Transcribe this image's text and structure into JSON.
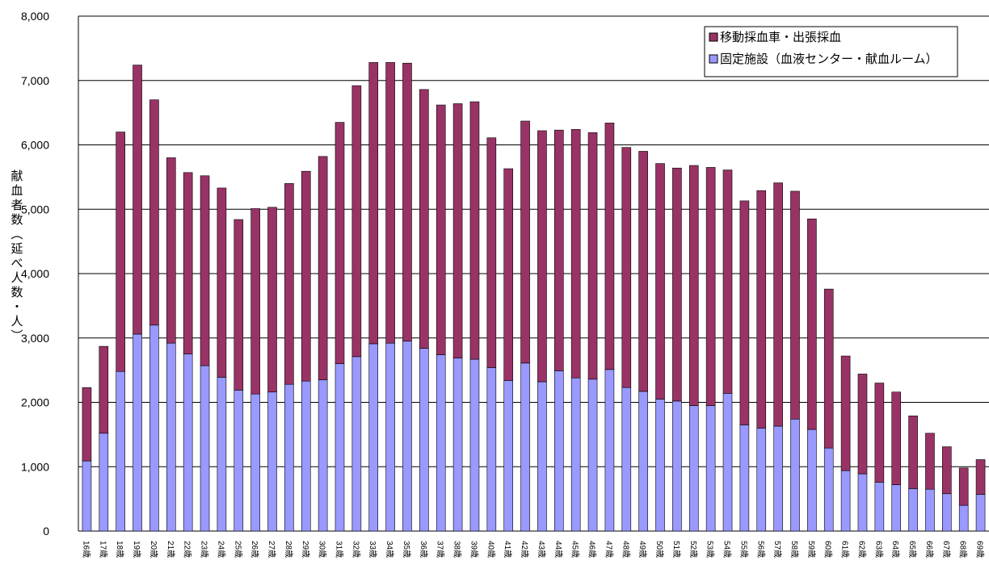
{
  "chart_data": {
    "type": "stacked_bar",
    "y_label": "献血者数（延べ人数・人）",
    "categories": [
      "16歳",
      "17歳",
      "18歳",
      "19歳",
      "20歳",
      "21歳",
      "22歳",
      "23歳",
      "24歳",
      "25歳",
      "26歳",
      "27歳",
      "28歳",
      "29歳",
      "30歳",
      "31歳",
      "32歳",
      "33歳",
      "34歳",
      "35歳",
      "36歳",
      "37歳",
      "38歳",
      "39歳",
      "40歳",
      "41歳",
      "42歳",
      "43歳",
      "44歳",
      "45歳",
      "46歳",
      "47歳",
      "48歳",
      "49歳",
      "50歳",
      "51歳",
      "52歳",
      "53歳",
      "54歳",
      "55歳",
      "56歳",
      "57歳",
      "58歳",
      "59歳",
      "60歳",
      "61歳",
      "62歳",
      "63歳",
      "64歳",
      "65歳",
      "66歳",
      "67歳",
      "68歳",
      "69歳"
    ],
    "series": [
      {
        "name": "固定施設（血液センター・献血ルーム）",
        "color": "#9999ff",
        "values": [
          1090,
          1520,
          2480,
          3060,
          3200,
          2920,
          2750,
          2570,
          2390,
          2190,
          2130,
          2160,
          2280,
          2330,
          2350,
          2600,
          2710,
          2910,
          2920,
          2950,
          2840,
          2740,
          2690,
          2670,
          2540,
          2340,
          2610,
          2320,
          2490,
          2380,
          2360,
          2510,
          2230,
          2170,
          2050,
          2020,
          1950,
          1950,
          2140,
          1650,
          1600,
          1630,
          1740,
          1580,
          1290,
          940,
          890,
          760,
          720,
          660,
          650,
          580,
          400,
          570
        ]
      },
      {
        "name": "移動採血車・出張採血",
        "color": "#993366",
        "values": [
          1140,
          1350,
          3720,
          4180,
          3500,
          2880,
          2820,
          2950,
          2940,
          2650,
          2880,
          2870,
          3120,
          3260,
          3470,
          3750,
          4210,
          4370,
          4360,
          4320,
          4020,
          3880,
          3950,
          4000,
          3570,
          3290,
          3760,
          3900,
          3740,
          3860,
          3830,
          3830,
          3730,
          3730,
          3660,
          3620,
          3730,
          3700,
          3470,
          3480,
          3690,
          3780,
          3540,
          3270,
          2470,
          1780,
          1550,
          1540,
          1440,
          1130,
          870,
          730,
          580,
          540
        ]
      }
    ],
    "ylim": [
      0,
      8000
    ],
    "yticks": [
      0,
      {
        "value": 1000,
        "label": "1,000"
      },
      {
        "value": 2000,
        "label": "2,000"
      },
      {
        "value": 3000,
        "label": "3,000"
      },
      {
        "value": 4000,
        "label": "4,000"
      },
      {
        "value": 5000,
        "label": "5,000"
      },
      {
        "value": 6000,
        "label": "6,000"
      },
      {
        "value": 7000,
        "label": "7,000"
      },
      {
        "value": 8000,
        "label": "8,000"
      }
    ],
    "grid": true,
    "legend": "upper right"
  }
}
